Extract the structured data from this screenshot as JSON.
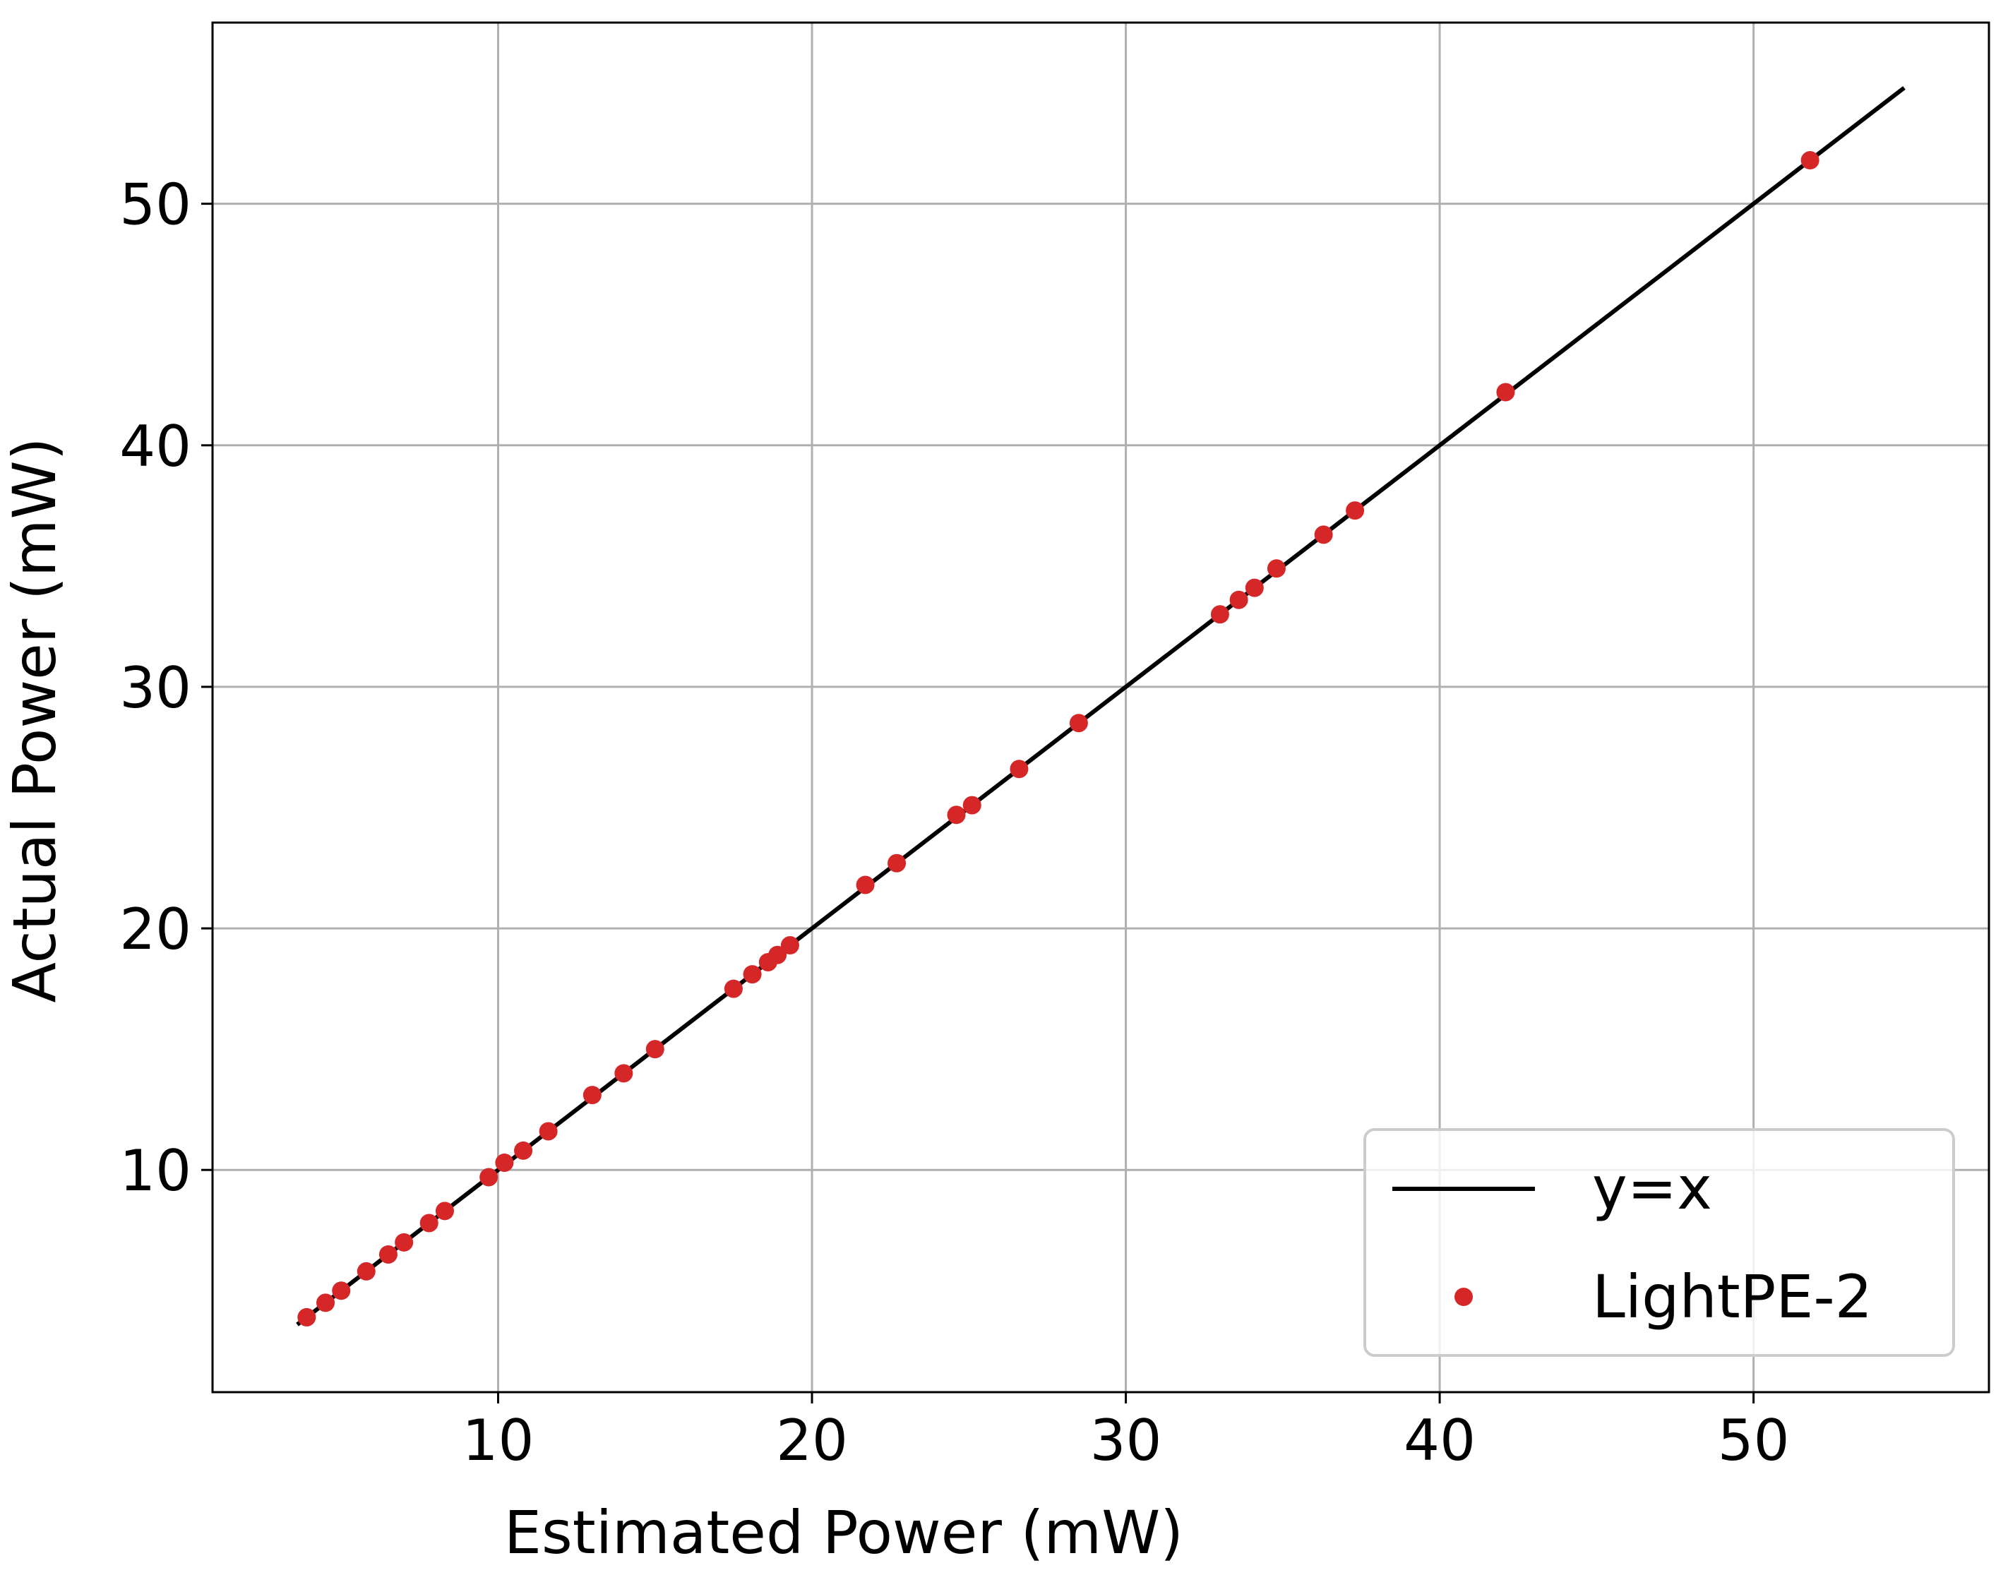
{
  "chart_data": {
    "type": "scatter",
    "xlabel": "Estimated Power (mW)",
    "ylabel": "Actual Power (mW)",
    "xlim": [
      0.9,
      57.5
    ],
    "ylim": [
      0.8,
      57.5
    ],
    "xticks": [
      10,
      20,
      30,
      40,
      50
    ],
    "yticks": [
      10,
      20,
      30,
      40,
      50
    ],
    "grid": true,
    "legend_position": "bottom-right",
    "colors": {
      "line": "#000000",
      "scatter": "#d62728",
      "grid": "#b0b0b0"
    },
    "series": [
      {
        "name": "y=x",
        "type": "line",
        "x": [
          3.6,
          54.8
        ],
        "y": [
          3.6,
          54.8
        ]
      },
      {
        "name": "LightPE-2",
        "type": "scatter",
        "x": [
          3.9,
          4.5,
          5.0,
          5.8,
          6.5,
          7.0,
          7.8,
          8.3,
          9.7,
          10.2,
          10.8,
          11.6,
          13.0,
          14.0,
          15.0,
          17.5,
          18.1,
          18.6,
          18.9,
          19.3,
          21.7,
          22.7,
          24.6,
          25.1,
          26.6,
          28.5,
          33.0,
          33.6,
          34.1,
          34.8,
          36.3,
          37.3,
          42.1,
          51.8
        ],
        "y": [
          3.9,
          4.5,
          5.0,
          5.8,
          6.5,
          7.0,
          7.8,
          8.3,
          9.7,
          10.3,
          10.8,
          11.6,
          13.1,
          14.0,
          15.0,
          17.5,
          18.1,
          18.6,
          18.9,
          19.3,
          21.8,
          22.7,
          24.7,
          25.1,
          26.6,
          28.5,
          33.0,
          33.6,
          34.1,
          34.9,
          36.3,
          37.3,
          42.2,
          51.8
        ]
      }
    ]
  }
}
